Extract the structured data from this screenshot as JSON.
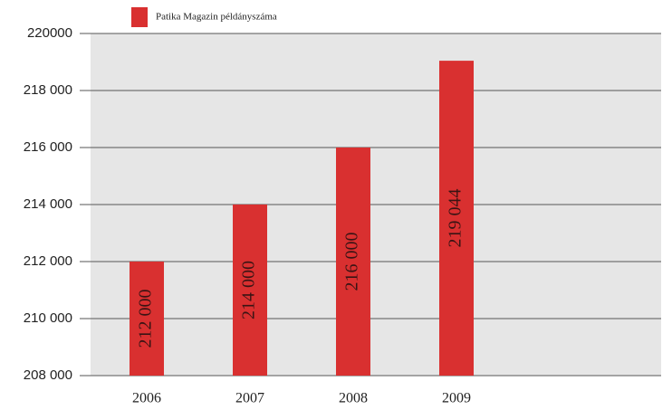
{
  "chart_data": {
    "type": "bar",
    "legend": "Patika Magazin példányszáma",
    "categories": [
      "2006",
      "2007",
      "2008",
      "2009"
    ],
    "values": [
      212000,
      214000,
      216000,
      219044
    ],
    "value_labels": [
      "212 000",
      "214 000",
      "216 000",
      "219 044"
    ],
    "color": "#d93030",
    "ylim": [
      208000,
      220000
    ],
    "yticks": [
      {
        "value": 208000,
        "label": "208 000"
      },
      {
        "value": 210000,
        "label": "210 000"
      },
      {
        "value": 212000,
        "label": "212 000"
      },
      {
        "value": 214000,
        "label": "214 000"
      },
      {
        "value": 216000,
        "label": "216 000"
      },
      {
        "value": 218000,
        "label": "218 000"
      },
      220000
    ],
    "grid": true
  }
}
